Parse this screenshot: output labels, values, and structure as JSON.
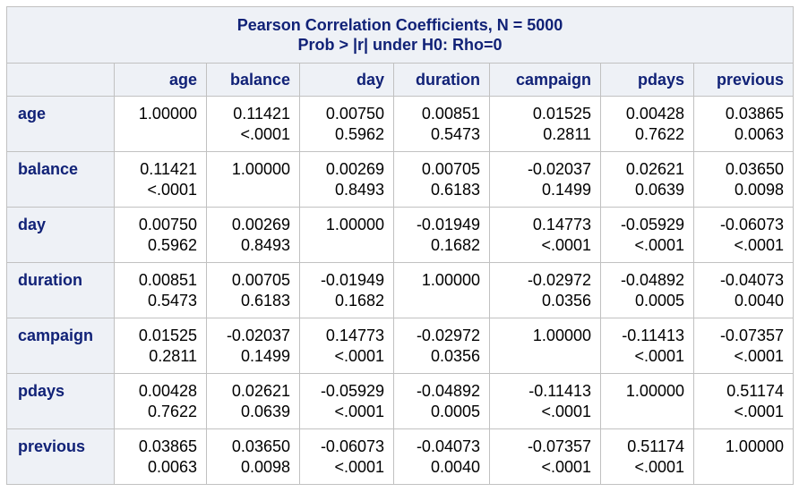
{
  "title_line1": "Pearson Correlation Coefficients, N = 5000",
  "title_line2": "Prob > |r| under H0: Rho=0",
  "columns": [
    "age",
    "balance",
    "day",
    "duration",
    "campaign",
    "pdays",
    "previous"
  ],
  "rows": [
    {
      "name": "age",
      "cells": [
        {
          "r": "1.00000",
          "p": ""
        },
        {
          "r": "0.11421",
          "p": "<.0001"
        },
        {
          "r": "0.00750",
          "p": "0.5962"
        },
        {
          "r": "0.00851",
          "p": "0.5473"
        },
        {
          "r": "0.01525",
          "p": "0.2811"
        },
        {
          "r": "0.00428",
          "p": "0.7622"
        },
        {
          "r": "0.03865",
          "p": "0.0063"
        }
      ]
    },
    {
      "name": "balance",
      "cells": [
        {
          "r": "0.11421",
          "p": "<.0001"
        },
        {
          "r": "1.00000",
          "p": ""
        },
        {
          "r": "0.00269",
          "p": "0.8493"
        },
        {
          "r": "0.00705",
          "p": "0.6183"
        },
        {
          "r": "-0.02037",
          "p": "0.1499"
        },
        {
          "r": "0.02621",
          "p": "0.0639"
        },
        {
          "r": "0.03650",
          "p": "0.0098"
        }
      ]
    },
    {
      "name": "day",
      "cells": [
        {
          "r": "0.00750",
          "p": "0.5962"
        },
        {
          "r": "0.00269",
          "p": "0.8493"
        },
        {
          "r": "1.00000",
          "p": ""
        },
        {
          "r": "-0.01949",
          "p": "0.1682"
        },
        {
          "r": "0.14773",
          "p": "<.0001"
        },
        {
          "r": "-0.05929",
          "p": "<.0001"
        },
        {
          "r": "-0.06073",
          "p": "<.0001"
        }
      ]
    },
    {
      "name": "duration",
      "cells": [
        {
          "r": "0.00851",
          "p": "0.5473"
        },
        {
          "r": "0.00705",
          "p": "0.6183"
        },
        {
          "r": "-0.01949",
          "p": "0.1682"
        },
        {
          "r": "1.00000",
          "p": ""
        },
        {
          "r": "-0.02972",
          "p": "0.0356"
        },
        {
          "r": "-0.04892",
          "p": "0.0005"
        },
        {
          "r": "-0.04073",
          "p": "0.0040"
        }
      ]
    },
    {
      "name": "campaign",
      "cells": [
        {
          "r": "0.01525",
          "p": "0.2811"
        },
        {
          "r": "-0.02037",
          "p": "0.1499"
        },
        {
          "r": "0.14773",
          "p": "<.0001"
        },
        {
          "r": "-0.02972",
          "p": "0.0356"
        },
        {
          "r": "1.00000",
          "p": ""
        },
        {
          "r": "-0.11413",
          "p": "<.0001"
        },
        {
          "r": "-0.07357",
          "p": "<.0001"
        }
      ]
    },
    {
      "name": "pdays",
      "cells": [
        {
          "r": "0.00428",
          "p": "0.7622"
        },
        {
          "r": "0.02621",
          "p": "0.0639"
        },
        {
          "r": "-0.05929",
          "p": "<.0001"
        },
        {
          "r": "-0.04892",
          "p": "0.0005"
        },
        {
          "r": "-0.11413",
          "p": "<.0001"
        },
        {
          "r": "1.00000",
          "p": ""
        },
        {
          "r": "0.51174",
          "p": "<.0001"
        }
      ]
    },
    {
      "name": "previous",
      "cells": [
        {
          "r": "0.03865",
          "p": "0.0063"
        },
        {
          "r": "0.03650",
          "p": "0.0098"
        },
        {
          "r": "-0.06073",
          "p": "<.0001"
        },
        {
          "r": "-0.04073",
          "p": "0.0040"
        },
        {
          "r": "-0.07357",
          "p": "<.0001"
        },
        {
          "r": "0.51174",
          "p": "<.0001"
        },
        {
          "r": "1.00000",
          "p": ""
        }
      ]
    }
  ],
  "colors": {
    "header_bg": "#eef1f6",
    "header_text": "#112277",
    "border": "#c1c1c1"
  }
}
